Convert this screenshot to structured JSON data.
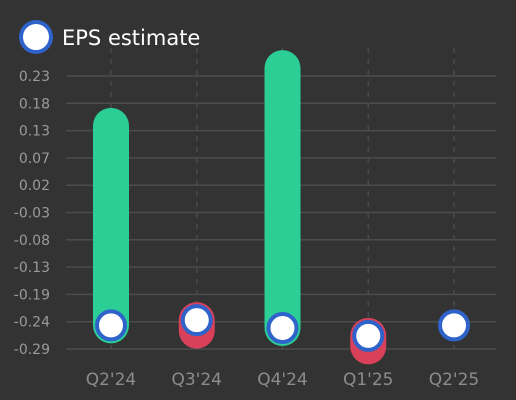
{
  "chart_data": {
    "type": "bar",
    "legend": [
      {
        "name": "EPS estimate",
        "marker": "circle",
        "fill": "#ffffff",
        "stroke": "#2f63c9"
      }
    ],
    "categories": [
      "Q2'24",
      "Q3'24",
      "Q4'24",
      "Q1'25",
      "Q2'25"
    ],
    "series": [
      {
        "name": "EPS estimate",
        "values": [
          -0.245,
          -0.235,
          -0.25,
          -0.265,
          -0.245
        ]
      },
      {
        "values": [
          0.135,
          -0.255,
          0.245,
          -0.285,
          null
        ]
      }
    ],
    "yticks": [
      "0.23",
      "0.18",
      "0.13",
      "0.07",
      "0.02",
      "-0.03",
      "-0.08",
      "-0.13",
      "-0.19",
      "-0.24",
      "-0.29"
    ],
    "ylim": [
      -0.31,
      0.25
    ],
    "grid": true,
    "legend_position": "top-left",
    "colors": {
      "beat": "#2bce94",
      "miss": "#d9405a",
      "marker_fill": "#ffffff",
      "marker_stroke": "#2f63c9",
      "grid": "#4c4c4c",
      "vertical_grid": "#4a4a4a",
      "axis_text": "#9a9a9a",
      "background": "#333333"
    }
  }
}
